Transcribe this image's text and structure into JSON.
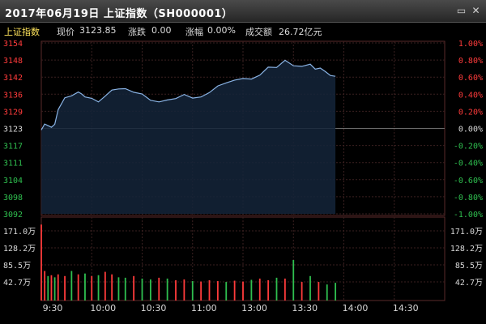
{
  "window": {
    "title": "2017年06月19日 上证指数（SH000001）",
    "minimize_icon": "minimize-icon",
    "close_icon": "close-icon"
  },
  "info": {
    "name": "上证指数",
    "price_label": "现价",
    "price": "3123.85",
    "change_label": "涨跌",
    "change": "0.00",
    "pct_label": "涨幅",
    "pct": "0.00%",
    "turnover_label": "成交额",
    "turnover": "26.72亿元"
  },
  "colors": {
    "up": "#ff3b3b",
    "down": "#2fbf4f",
    "neutral": "#d8d8d8",
    "line": "#8ab4e6",
    "grid": "#3a2020",
    "symbol": "#ffe45c"
  },
  "chart_data": [
    {
      "type": "line",
      "title": "",
      "price_axis": [
        "3154",
        "3148",
        "3142",
        "3136",
        "3129",
        "3123",
        "3117",
        "3111",
        "3104",
        "3098",
        "3092"
      ],
      "pct_axis": [
        "1.00%",
        "0.80%",
        "0.60%",
        "0.40%",
        "0.20%",
        "0.00%",
        "-0.20%",
        "-0.40%",
        "-0.60%",
        "-0.80%",
        "-1.00%"
      ],
      "ylim": [
        3092,
        3154
      ],
      "reference": 3123.85,
      "x_ticks": [
        "9:30",
        "10:00",
        "10:30",
        "11:00",
        "13:00",
        "13:30",
        "14:00",
        "14:30"
      ],
      "series": [
        {
          "x": [
            0,
            2,
            4,
            6,
            8,
            10,
            14,
            18,
            22,
            24,
            26,
            30,
            34,
            38,
            42,
            46,
            50,
            55,
            60,
            65,
            70,
            75,
            80,
            85,
            90,
            95,
            100,
            105,
            110,
            115,
            120,
            125,
            130,
            135,
            140,
            145,
            150,
            155,
            160,
            163,
            166,
            169,
            172,
            175
          ],
          "values": [
            3122.4,
            3124.6,
            3124.0,
            3123.4,
            3124.5,
            3129.8,
            3134.1,
            3134.8,
            3136.2,
            3135.5,
            3134.4,
            3133.9,
            3132.6,
            3134.7,
            3136.9,
            3137.3,
            3137.4,
            3136.1,
            3135.5,
            3133.2,
            3132.6,
            3133.3,
            3133.8,
            3135.3,
            3134.0,
            3134.4,
            3136.0,
            3138.4,
            3139.5,
            3140.5,
            3141.1,
            3140.9,
            3142.3,
            3145.2,
            3145.1,
            3147.7,
            3145.7,
            3145.5,
            3146.3,
            3144.5,
            3144.9,
            3143.6,
            3142.2,
            3141.9
          ]
        }
      ]
    },
    {
      "type": "bar",
      "title": "",
      "volume_axis": [
        "171.0万",
        "128.2万",
        "85.5万",
        "42.7万"
      ],
      "ylim": [
        0,
        192
      ],
      "x_ticks": [
        "9:30",
        "10:00",
        "10:30",
        "11:00",
        "13:00",
        "13:30",
        "14:00",
        "14:30"
      ],
      "x": [
        0,
        2,
        4,
        6,
        8,
        10,
        14,
        18,
        22,
        26,
        30,
        34,
        38,
        42,
        46,
        50,
        55,
        60,
        65,
        70,
        75,
        80,
        85,
        90,
        95,
        100,
        105,
        110,
        115,
        120,
        125,
        130,
        135,
        140,
        145,
        150,
        155,
        160,
        165,
        170,
        175
      ],
      "values": [
        180,
        70,
        58,
        60,
        55,
        62,
        58,
        70,
        62,
        64,
        58,
        60,
        68,
        62,
        55,
        54,
        58,
        52,
        50,
        54,
        52,
        48,
        50,
        46,
        45,
        48,
        46,
        44,
        47,
        45,
        49,
        52,
        48,
        54,
        52,
        96,
        44,
        58,
        44,
        38,
        42
      ],
      "directions": [
        "up",
        "up",
        "down",
        "up",
        "down",
        "up",
        "up",
        "down",
        "up",
        "down",
        "up",
        "down",
        "up",
        "up",
        "down",
        "down",
        "up",
        "down",
        "down",
        "up",
        "down",
        "up",
        "up",
        "down",
        "up",
        "up",
        "up",
        "down",
        "up",
        "up",
        "down",
        "up",
        "up",
        "down",
        "up",
        "down",
        "up",
        "down",
        "up",
        "down",
        "down"
      ]
    }
  ]
}
